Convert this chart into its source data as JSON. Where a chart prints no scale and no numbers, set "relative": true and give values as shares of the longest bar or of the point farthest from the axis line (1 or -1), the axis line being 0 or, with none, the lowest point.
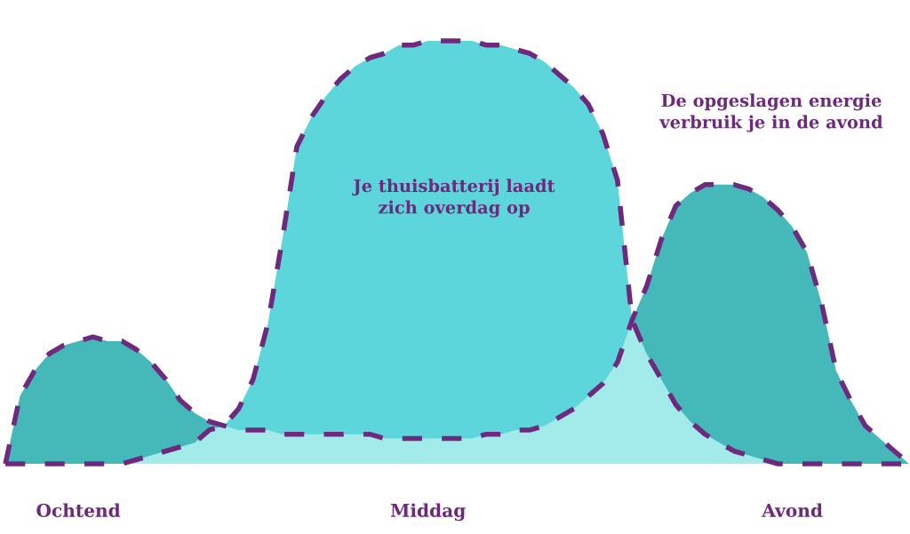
{
  "chart_data": {
    "type": "area",
    "relative": true,
    "tick_labels": "x",
    "line_style": "dashed",
    "categories": [
      null,
      null,
      null,
      null,
      null,
      "Ochtend",
      null,
      null,
      null,
      null,
      null,
      null,
      null,
      null,
      null,
      null,
      null,
      null,
      null,
      null,
      null,
      null,
      null,
      null,
      null,
      null,
      null,
      null,
      null,
      "Middag",
      null,
      null,
      null,
      null,
      null,
      null,
      null,
      null,
      null,
      null,
      null,
      null,
      null,
      null,
      null,
      null,
      null,
      null,
      null,
      null,
      null,
      null,
      null,
      null,
      "Avond",
      null,
      null,
      null,
      null,
      null,
      null,
      null,
      null
    ],
    "series": [
      {
        "color": "#5cd6da",
        "values": [
          null,
          null,
          null,
          null,
          null,
          null,
          null,
          null,
          null,
          null,
          null,
          null,
          null,
          null,
          null,
          0.09,
          0.13,
          0.2,
          0.33,
          0.53,
          0.75,
          0.82,
          0.87,
          0.91,
          0.94,
          0.96,
          0.97,
          0.99,
          0.99,
          1.0,
          1.0,
          1.0,
          1.0,
          0.99,
          0.99,
          0.98,
          0.97,
          0.95,
          0.92,
          0.89,
          0.85,
          0.78,
          0.67,
          0.34,
          null,
          null,
          null,
          null,
          null,
          null,
          null,
          null,
          null,
          null,
          null,
          null,
          null,
          null,
          null,
          null,
          null,
          null,
          null
        ]
      },
      {
        "color": "#45b8b9",
        "values": [
          0,
          0.16,
          0.22,
          0.26,
          0.28,
          0.29,
          0.3,
          0.29,
          0.29,
          0.27,
          0.24,
          0.2,
          0.15,
          0.12,
          0.1,
          0.09,
          null,
          null,
          null,
          null,
          null,
          null,
          null,
          null,
          null,
          null,
          null,
          null,
          null,
          null,
          null,
          null,
          null,
          null,
          null,
          null,
          null,
          null,
          null,
          null,
          null,
          null,
          null,
          0.34,
          0.42,
          0.53,
          0.61,
          0.64,
          0.66,
          0.66,
          0.66,
          0.65,
          0.63,
          0.6,
          0.56,
          0.5,
          0.38,
          0.22,
          0.15,
          0.09,
          0.06,
          0.03,
          0
        ]
      },
      {
        "color": "#a3eaea",
        "values": [
          0,
          0,
          0,
          0,
          0,
          0,
          0,
          0,
          0,
          0.01,
          0.02,
          0.03,
          0.04,
          0.05,
          0.08,
          0.09,
          0.08,
          0.08,
          0.08,
          0.07,
          0.07,
          0.07,
          0.07,
          0.07,
          0.07,
          0.07,
          0.06,
          0.06,
          0.06,
          0.06,
          0.06,
          0.06,
          0.06,
          0.07,
          0.07,
          0.08,
          0.08,
          0.09,
          0.11,
          0.13,
          0.16,
          0.19,
          0.24,
          0.34,
          0.26,
          0.2,
          0.14,
          0.1,
          0.07,
          0.05,
          0.03,
          0.02,
          0.01,
          0,
          0,
          0,
          0,
          0,
          0,
          0,
          0,
          0,
          0
        ]
      },
      {
        "type": "line",
        "color": "#6e287d",
        "values": [
          0,
          0,
          0,
          0,
          0,
          0,
          0,
          0,
          0,
          0.01,
          0.02,
          0.03,
          0.04,
          0.05,
          0.08,
          0.09,
          0.13,
          0.2,
          0.33,
          0.53,
          0.75,
          0.82,
          0.87,
          0.91,
          0.94,
          0.96,
          0.97,
          0.99,
          0.99,
          1.0,
          1.0,
          1.0,
          1.0,
          0.99,
          0.99,
          0.98,
          0.97,
          0.95,
          0.92,
          0.89,
          0.85,
          0.78,
          0.67,
          0.34,
          0.26,
          0.2,
          0.14,
          0.1,
          0.07,
          0.05,
          0.03,
          0.02,
          0.01,
          0,
          0,
          0,
          0,
          0,
          0,
          0,
          0,
          0,
          0
        ]
      },
      {
        "type": "line",
        "color": "#6f297e",
        "values": [
          0,
          0.16,
          0.22,
          0.26,
          0.28,
          0.29,
          0.3,
          0.29,
          0.29,
          0.27,
          0.24,
          0.2,
          0.15,
          0.12,
          0.1,
          0.09,
          0.08,
          0.08,
          0.08,
          0.07,
          0.07,
          0.07,
          0.07,
          0.07,
          0.07,
          0.07,
          0.06,
          0.06,
          0.06,
          0.06,
          0.06,
          0.06,
          0.06,
          0.07,
          0.07,
          0.08,
          0.08,
          0.09,
          0.11,
          0.13,
          0.16,
          0.19,
          0.24,
          0.34,
          0.42,
          0.53,
          0.61,
          0.64,
          0.66,
          0.66,
          0.66,
          0.65,
          0.63,
          0.6,
          0.56,
          0.5,
          0.38,
          0.22,
          0.15,
          0.09,
          0.06,
          0.03,
          0
        ]
      }
    ],
    "annotations": [
      "Je thuisbatterij laadt\nzich overdag op",
      "De opgeslagen energie\nverbruik je in de avond"
    ]
  }
}
